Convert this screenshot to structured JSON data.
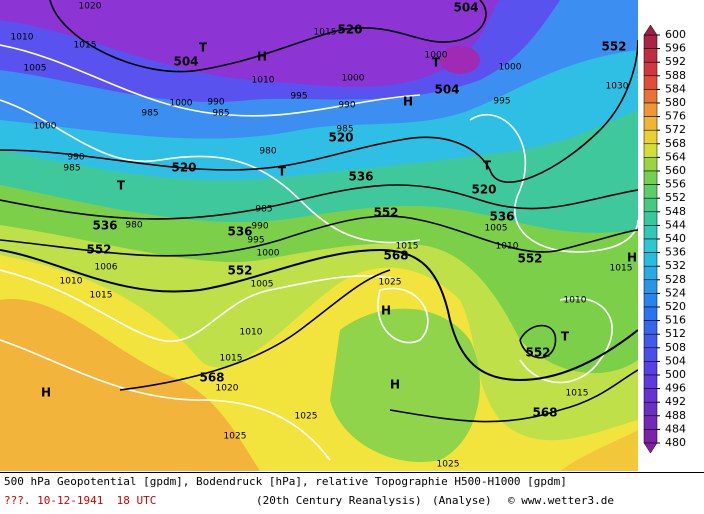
{
  "map": {
    "labels": [
      "1020",
      "1010",
      "1015",
      "1005",
      "504",
      "T",
      "H",
      "1015",
      "520",
      "504",
      "1000",
      "T",
      "1000",
      "552",
      "1030",
      "1000",
      "1010",
      "H",
      "504",
      "995",
      "990",
      "995",
      "1000",
      "990",
      "985",
      "985",
      "1000",
      "985",
      "520",
      "980",
      "990",
      "985",
      "T",
      "520",
      "T",
      "536",
      "T",
      "520",
      "985",
      "552",
      "536",
      "536",
      "980",
      "536",
      "990",
      "995",
      "1005",
      "1010",
      "552",
      "1000",
      "568",
      "552",
      "H",
      "1006",
      "1015",
      "1015",
      "1010",
      "1015",
      "552",
      "1005",
      "1025",
      "H",
      "1010",
      "T",
      "1010",
      "552",
      "1015",
      "568",
      "H",
      "1020",
      "H",
      "1015",
      "568",
      "1025",
      "1025",
      "1025"
    ]
  },
  "colorbar": {
    "ticks": [
      600,
      596,
      592,
      588,
      584,
      580,
      576,
      572,
      568,
      564,
      560,
      556,
      552,
      548,
      544,
      540,
      536,
      532,
      528,
      524,
      520,
      516,
      512,
      508,
      504,
      500,
      496,
      492,
      488,
      484,
      480
    ]
  },
  "footer": {
    "description": "500 hPa Geopotential [gpdm], Bodendruck [hPa], relative Topographie H500-H1000 [gpdm]",
    "date": "???. 10-12-1941  18 UTC",
    "source": "(20th Century Reanalysis)",
    "mode": "(Analyse)",
    "credit": "© www.wetter3.de"
  }
}
